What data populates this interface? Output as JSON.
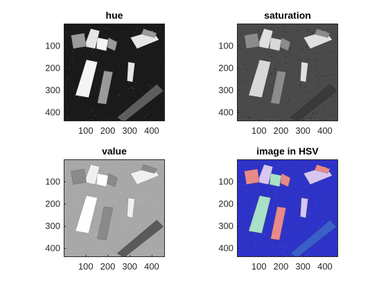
{
  "panels": [
    {
      "title": "hue",
      "xticks": [
        "100",
        "200",
        "300",
        "400"
      ],
      "yticks": [
        "100",
        "200",
        "300",
        "400"
      ],
      "colors": {
        "bg": "#1a1a1a",
        "noise": "#3a3a3a",
        "brick_light": "#e6e6e6",
        "brick_mid": "#9a9a9a",
        "brick_dark": "#5e5e5e",
        "brick_white": "#f5f5f5"
      }
    },
    {
      "title": "saturation",
      "xticks": [
        "100",
        "200",
        "300",
        "400"
      ],
      "yticks": [
        "100",
        "200",
        "300",
        "400"
      ],
      "colors": {
        "bg": "#4a4a4a",
        "noise": "#2a2a2a",
        "brick_light": "#e0e0e0",
        "brick_mid": "#8c8c8c",
        "brick_dark": "#3a3a3a",
        "brick_white": "#d8d8d8"
      }
    },
    {
      "title": "value",
      "xticks": [
        "100",
        "200",
        "300",
        "400"
      ],
      "yticks": [
        "100",
        "200",
        "300",
        "400"
      ],
      "colors": {
        "bg": "#a8a8a8",
        "noise": "#b8b8b8",
        "brick_light": "#f0f0f0",
        "brick_mid": "#8a8a8a",
        "brick_dark": "#5a5a5a",
        "brick_white": "#ffffff"
      }
    },
    {
      "title": "image in HSV",
      "xticks": [
        "100",
        "200",
        "300",
        "400"
      ],
      "yticks": [
        "100",
        "200",
        "300",
        "400"
      ],
      "colors": {
        "bg": "#2e33c8",
        "noise": "#5a3fbf",
        "brick_light": "#d6c6f0",
        "brick_mid": "#e88a8a",
        "brick_dark": "#3a5fc8",
        "brick_white": "#a8e0c8"
      }
    }
  ]
}
